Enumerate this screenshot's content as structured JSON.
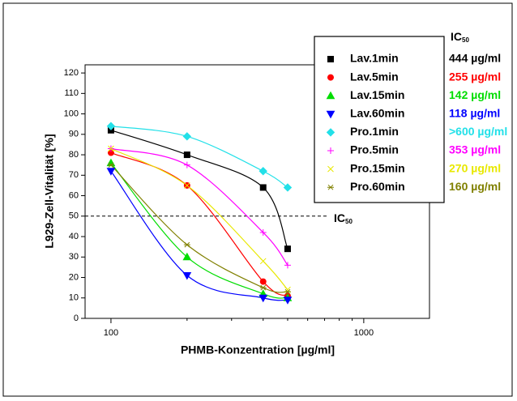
{
  "chart_data": {
    "type": "scatter",
    "xlabel": "PHMB-Konzentration [µg/ml]",
    "ylabel": "L929-Zell-Vitalität [%]",
    "x": [
      100,
      200,
      400,
      500
    ],
    "xlog": true,
    "xlim": [
      79,
      1820
    ],
    "xticks": [
      100,
      1000
    ],
    "xminorticks": [
      200,
      300,
      400,
      500,
      600,
      700,
      800,
      900
    ],
    "ylim": [
      0,
      124
    ],
    "yticks": [
      0,
      10,
      20,
      30,
      40,
      50,
      60,
      70,
      80,
      90,
      100,
      110,
      120
    ],
    "ic50_heading": {
      "main": "IC",
      "sub": "50"
    },
    "reference_line": {
      "value": 50,
      "main": "IC",
      "sub": "50"
    },
    "series": [
      {
        "name": "Lav.1min",
        "color": "#000000",
        "marker": "square",
        "values": [
          92,
          80,
          64,
          34
        ],
        "ic50": "444 µg/ml"
      },
      {
        "name": "Lav.5min",
        "color": "#ff0000",
        "marker": "circle",
        "values": [
          81,
          65,
          18,
          11
        ],
        "ic50": "255 µg/ml"
      },
      {
        "name": "Lav.15min",
        "color": "#00dd00",
        "marker": "triangle-up",
        "values": [
          76,
          30,
          12,
          10
        ],
        "ic50": "142 µg/ml"
      },
      {
        "name": "Lav.60min",
        "color": "#0000ff",
        "marker": "triangle-down",
        "values": [
          72,
          21,
          10,
          9
        ],
        "ic50": "118 µg/ml"
      },
      {
        "name": "Pro.1min",
        "color": "#22e0e8",
        "marker": "diamond",
        "values": [
          94,
          89,
          72,
          64
        ],
        "ic50": ">600 µg/ml"
      },
      {
        "name": "Pro.5min",
        "color": "#ff00ff",
        "marker": "plus",
        "values": [
          83,
          75,
          42,
          26
        ],
        "ic50": "353 µg/ml"
      },
      {
        "name": "Pro.15min",
        "color": "#e8e800",
        "marker": "x",
        "values": [
          83,
          65,
          28,
          14
        ],
        "ic50": "270 µg/ml"
      },
      {
        "name": "Pro.60min",
        "color": "#808000",
        "marker": "star",
        "values": [
          75,
          36,
          15,
          13
        ],
        "ic50": "160 µg/ml"
      }
    ]
  }
}
